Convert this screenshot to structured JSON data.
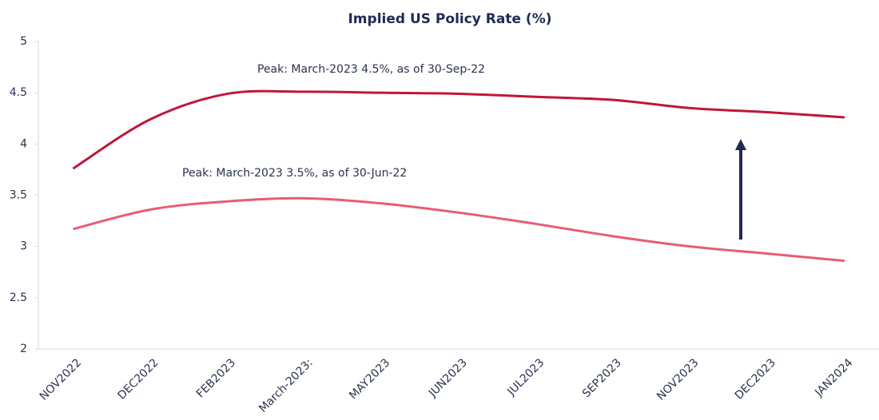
{
  "chart_data": {
    "type": "line",
    "title": "Implied US Policy Rate (%)",
    "categories": [
      "NOV2022",
      "DEC2022",
      "FEB2023",
      "March-2023:",
      "MAY2023",
      "JUN2023",
      "JUL2023",
      "SEP2023",
      "NOV2023",
      "DEC2023",
      "JAN2024"
    ],
    "series": [
      {
        "color": "#c0163a",
        "values": [
          3.76,
          4.24,
          4.49,
          4.51,
          4.5,
          4.49,
          4.46,
          4.43,
          4.35,
          4.31,
          4.26
        ]
      },
      {
        "color": "#ea5b74",
        "values": [
          3.17,
          3.36,
          3.44,
          3.47,
          3.42,
          3.33,
          3.22,
          3.1,
          3.0,
          2.93,
          2.86
        ]
      }
    ],
    "annotations": [
      "Peak: March-2023  4.5%, as of 30-Sep-22",
      "Peak: March-2023  3.5%, as of 30-Jun-22"
    ],
    "ylim": [
      2,
      5
    ],
    "yticks": [
      2,
      2.5,
      3,
      3.5,
      4,
      4.5,
      5
    ],
    "grid": false
  }
}
